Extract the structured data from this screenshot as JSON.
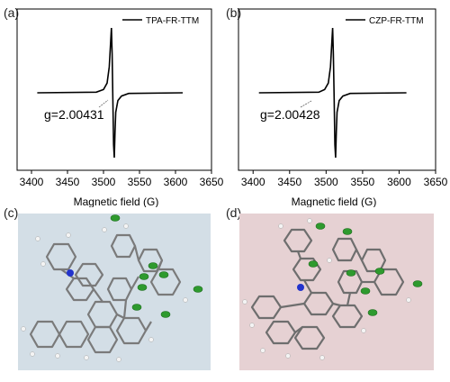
{
  "panels": {
    "a": {
      "label": "(a)",
      "legend": "TPA-FR-TTM",
      "gvalue": "g=2.00431",
      "xlabel": "Magnetic field (G)",
      "ticks": [
        "3400",
        "3450",
        "3500",
        "3550",
        "3600",
        "3650"
      ]
    },
    "b": {
      "label": "(b)",
      "legend": "CZP-FR-TTM",
      "gvalue": "g=2.00428",
      "xlabel": "Magnetic field (G)",
      "ticks": [
        "3400",
        "3450",
        "3500",
        "3550",
        "3600",
        "3650"
      ]
    },
    "c": {
      "label": "(c)",
      "background": "#d3dee6"
    },
    "d": {
      "label": "(d)",
      "background": "#e6d1d3"
    }
  },
  "chart_data": [
    {
      "type": "line",
      "panel": "a",
      "xlabel": "Magnetic field (G)",
      "ylabel": "",
      "xlim": [
        3380,
        3650
      ],
      "xticks": [
        3400,
        3450,
        3500,
        3550,
        3600,
        3650
      ],
      "series": [
        {
          "name": "TPA-FR-TTM",
          "x": [
            3408,
            3490,
            3500,
            3505,
            3508,
            3510,
            3511,
            3512,
            3513,
            3514,
            3515,
            3516,
            3517,
            3520,
            3525,
            3535,
            3610
          ],
          "y": [
            0,
            0.01,
            0.05,
            0.15,
            0.4,
            0.8,
            1.0,
            0.6,
            -0.1,
            -0.8,
            -1.0,
            -0.6,
            -0.3,
            -0.12,
            -0.05,
            -0.01,
            0
          ]
        }
      ],
      "annotation": "g=2.00431",
      "grid": false,
      "legend": "top-right"
    },
    {
      "type": "line",
      "panel": "b",
      "xlabel": "Magnetic field (G)",
      "ylabel": "",
      "xlim": [
        3380,
        3650
      ],
      "xticks": [
        3400,
        3450,
        3500,
        3550,
        3600,
        3650
      ],
      "series": [
        {
          "name": "CZP-FR-TTM",
          "x": [
            3408,
            3490,
            3498,
            3503,
            3506,
            3508,
            3509,
            3510,
            3511,
            3512,
            3513,
            3514,
            3515,
            3518,
            3523,
            3533,
            3610
          ],
          "y": [
            0,
            0.01,
            0.05,
            0.15,
            0.4,
            0.8,
            1.0,
            0.6,
            -0.1,
            -0.8,
            -1.0,
            -0.6,
            -0.3,
            -0.12,
            -0.05,
            -0.01,
            0
          ]
        }
      ],
      "annotation": "g=2.00428",
      "grid": false,
      "legend": "top-right"
    }
  ]
}
